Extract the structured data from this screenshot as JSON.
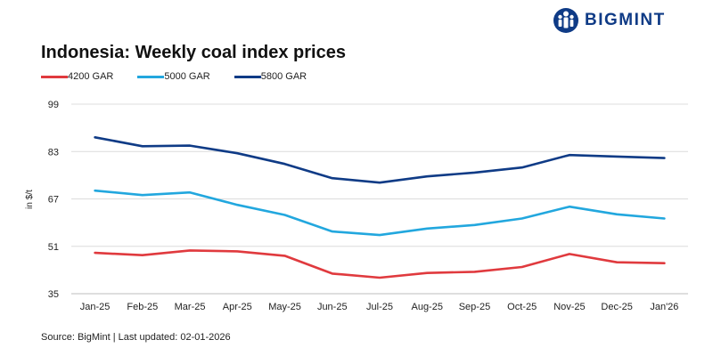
{
  "brand": {
    "name": "BIGMINT"
  },
  "chart_data": {
    "type": "line",
    "title": "Indonesia: Weekly coal index prices",
    "ylabel": "in $/t",
    "xlabel": "",
    "categories": [
      "Jan-25",
      "Feb-25",
      "Mar-25",
      "Apr-25",
      "May-25",
      "Jun-25",
      "Jul-25",
      "Aug-25",
      "Sep-25",
      "Oct-25",
      "Nov-25",
      "Dec-25",
      "Jan'26"
    ],
    "yticks": [
      35,
      51,
      67,
      83,
      99
    ],
    "ylim": [
      35,
      99
    ],
    "grid": true,
    "legend_position": "top-left",
    "series": [
      {
        "name": "4200 GAR",
        "color": "#e03a3e",
        "values": [
          48.8,
          48.0,
          49.6,
          49.3,
          47.8,
          41.8,
          40.4,
          42.0,
          42.4,
          44.0,
          48.4,
          45.6,
          45.3
        ]
      },
      {
        "name": "5000 GAR",
        "color": "#22a7de",
        "values": [
          69.8,
          68.3,
          69.2,
          65.0,
          61.6,
          56.0,
          54.8,
          57.0,
          58.2,
          60.4,
          64.4,
          61.8,
          60.4
        ]
      },
      {
        "name": "5800 GAR",
        "color": "#0f3b86",
        "values": [
          87.8,
          84.8,
          85.0,
          82.4,
          78.8,
          74.0,
          72.5,
          74.6,
          75.9,
          77.6,
          81.8,
          81.3,
          80.8
        ]
      }
    ]
  },
  "source": "Source: BigMint | Last updated: 02-01-2026"
}
